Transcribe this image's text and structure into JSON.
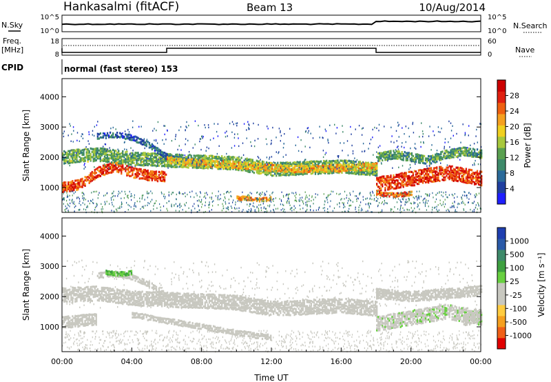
{
  "header": {
    "station": "Hankasalmi (fitACF)",
    "beam": "Beam 13",
    "date": "10/Aug/2014"
  },
  "top_panels": {
    "nsky_label": "N.Sky",
    "nsky_ticks": [
      "10^5",
      "10^0"
    ],
    "nsearch_label": "N.Search",
    "nsearch_ticks": [
      "10^5",
      "10^0"
    ],
    "freq_label_1": "Freq.",
    "freq_label_2": "[MHz]",
    "freq_ticks": [
      "18",
      "8"
    ],
    "nave_label": "Nave",
    "nave_ticks": [
      "60",
      "0"
    ],
    "cpid_label": "CPID",
    "cpid_text": "normal (fast stereo) 153"
  },
  "colors": {
    "power_scale": [
      "#1f1fff",
      "#1f3fa0",
      "#2a6a9a",
      "#3e8a6a",
      "#5aa050",
      "#a8c83c",
      "#f0d020",
      "#f5a020",
      "#ee6010",
      "#e02010",
      "#cc0000"
    ],
    "velocity_scale": [
      "#e00000",
      "#f06018",
      "#f5a020",
      "#ffcc40",
      "#c8c8c0",
      "#c8c8c0",
      "#68d040",
      "#3ea040",
      "#3e8a6a",
      "#2a5aa8",
      "#1f3fb0"
    ],
    "ground_scatter": "#b4b4b0",
    "line": "#000000"
  },
  "chart_data": [
    {
      "type": "heatmap",
      "title": "Power",
      "ylabel": "Slant Range [km]",
      "ylim": [
        180,
        4600
      ],
      "yticks": [
        "1000",
        "2000",
        "3000",
        "4000"
      ],
      "colorbar_label": "Power [dB]",
      "colorbar_ticks": [
        "4",
        "8",
        "12",
        "16",
        "20",
        "24",
        "28"
      ],
      "colorbar_range": [
        0,
        32
      ],
      "xlim": [
        0,
        24
      ],
      "bands": [
        {
          "t": [
            0,
            1,
            2,
            3,
            4,
            5,
            6
          ],
          "r": [
            1000,
            1100,
            1500,
            1700,
            1500,
            1400,
            1350
          ],
          "w": 350,
          "v": 26
        },
        {
          "t": [
            0,
            2,
            4,
            6,
            8,
            10,
            12,
            14,
            16,
            18
          ],
          "r": [
            2000,
            2100,
            1950,
            1900,
            1850,
            1800,
            1600,
            1650,
            1700,
            1600
          ],
          "w": 450,
          "v": 13
        },
        {
          "t": [
            2,
            3,
            4,
            5,
            6,
            7,
            8
          ],
          "r": [
            2700,
            2750,
            2650,
            2400,
            2000,
            1900,
            1800
          ],
          "w": 200,
          "v": 7
        },
        {
          "t": [
            6,
            8,
            10,
            12,
            14,
            16,
            18
          ],
          "r": [
            1900,
            1800,
            1750,
            1650,
            1600,
            1650,
            1700
          ],
          "w": 250,
          "v": 20
        },
        {
          "t": [
            10,
            10.5,
            11,
            11.5,
            12
          ],
          "r": [
            650,
            650,
            600,
            600,
            650
          ],
          "w": 150,
          "v": 22
        },
        {
          "t": [
            18,
            19,
            20,
            21,
            22,
            23,
            24
          ],
          "r": [
            1100,
            1200,
            1300,
            1400,
            1500,
            1400,
            1300
          ],
          "w": 500,
          "v": 27
        },
        {
          "t": [
            18,
            19,
            20,
            21,
            22,
            23,
            24
          ],
          "r": [
            2000,
            2100,
            2000,
            1900,
            2100,
            2200,
            2100
          ],
          "w": 300,
          "v": 12
        },
        {
          "t": [
            18,
            19,
            20
          ],
          "r": [
            800,
            750,
            800
          ],
          "w": 150,
          "v": 25
        }
      ]
    },
    {
      "type": "heatmap",
      "title": "Velocity",
      "ylabel": "Slant Range [km]",
      "ylim": [
        180,
        4600
      ],
      "yticks": [
        "1000",
        "2000",
        "3000",
        "4000"
      ],
      "xlabel": "Time UT",
      "xticks": [
        "00:00",
        "04:00",
        "08:00",
        "12:00",
        "16:00",
        "20:00",
        "00:00"
      ],
      "xlim": [
        0,
        24
      ],
      "colorbar_label": "Velocity [m s⁻¹]",
      "colorbar_ticks": [
        "1000",
        "500",
        "100",
        "25",
        "-25",
        "-100",
        "-500",
        "-1000"
      ],
      "bands": [
        {
          "t": [
            0,
            1,
            2
          ],
          "r": [
            1150,
            1200,
            1250
          ],
          "w": 400,
          "v": -150
        },
        {
          "t": [
            0,
            2,
            4,
            6,
            8,
            10,
            12,
            14,
            16,
            18
          ],
          "r": [
            2050,
            2100,
            1950,
            1900,
            1850,
            1800,
            1600,
            1650,
            1700,
            1600
          ],
          "w": 500,
          "v": 0
        },
        {
          "t": [
            2,
            3,
            4,
            5,
            6,
            7,
            8
          ],
          "r": [
            2700,
            2750,
            2650,
            2400,
            2000,
            1900,
            1800
          ],
          "w": 200,
          "v": 0
        },
        {
          "t": [
            4,
            6,
            8,
            10,
            12
          ],
          "r": [
            1400,
            1200,
            1000,
            800,
            650
          ],
          "w": 200,
          "v": 0
        },
        {
          "t": [
            2.5,
            3,
            3.5,
            4
          ],
          "r": [
            2800,
            2750,
            2750,
            2800
          ],
          "w": 150,
          "v": 300
        },
        {
          "t": [
            18,
            19,
            20,
            21,
            22,
            23,
            24
          ],
          "r": [
            1100,
            1200,
            1300,
            1400,
            1500,
            1400,
            1300
          ],
          "w": 500,
          "v": 80
        },
        {
          "t": [
            18,
            20,
            22,
            24
          ],
          "r": [
            2100,
            2000,
            2100,
            2200
          ],
          "w": 350,
          "v": 0
        },
        {
          "t": [
            23,
            23.5,
            24
          ],
          "r": [
            1200,
            1300,
            1400
          ],
          "w": 400,
          "v": -150
        }
      ]
    }
  ]
}
